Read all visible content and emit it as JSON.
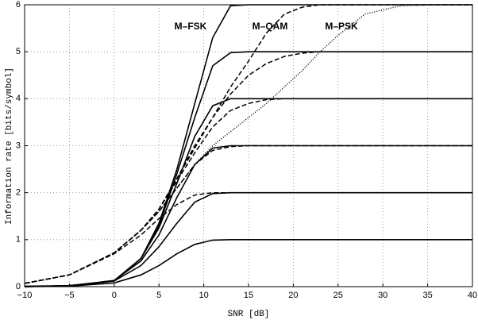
{
  "chart_data": {
    "type": "line",
    "xlabel": "SNR [dB]",
    "ylabel": "Information rate [bits/symbol]",
    "annotations": [
      "M–FSK",
      "M–QAM",
      "M–PSK"
    ],
    "x": [
      -10,
      -5,
      0,
      3,
      5,
      7,
      9,
      11,
      13,
      15,
      17,
      19,
      21,
      23,
      25,
      28,
      32,
      36,
      40
    ],
    "xlim": [
      -10,
      40
    ],
    "xticks": [
      {
        "value": -10,
        "label": "−10"
      },
      {
        "value": -5,
        "label": "−5"
      },
      0,
      5,
      10,
      15,
      20,
      25,
      30,
      35,
      40
    ],
    "ylim": [
      0,
      6
    ],
    "yticks": [
      0,
      1,
      2,
      3,
      4,
      5,
      6
    ],
    "grid": true,
    "series": [
      {
        "color": "#000000",
        "dash": "solid",
        "values": [
          0.0,
          0.01,
          0.08,
          0.25,
          0.45,
          0.7,
          0.9,
          0.99,
          1,
          1,
          1,
          1,
          1,
          1,
          1,
          1,
          1,
          1,
          1
        ]
      },
      {
        "color": "#000000",
        "dash": "solid",
        "values": [
          0.01,
          0.02,
          0.12,
          0.45,
          0.85,
          1.35,
          1.8,
          1.98,
          2,
          2,
          2,
          2,
          2,
          2,
          2,
          2,
          2,
          2,
          2
        ]
      },
      {
        "color": "#000000",
        "dash": "solid",
        "values": [
          0.0,
          0.02,
          0.13,
          0.55,
          1.1,
          1.9,
          2.6,
          2.95,
          3,
          3,
          3,
          3,
          3,
          3,
          3,
          3,
          3,
          3,
          3
        ]
      },
      {
        "color": "#000000",
        "dash": "solid",
        "values": [
          0.0,
          0.02,
          0.13,
          0.6,
          1.25,
          2.2,
          3.2,
          3.85,
          4,
          4,
          4,
          4,
          4,
          4,
          4,
          4,
          4,
          4,
          4
        ]
      },
      {
        "color": "#000000",
        "dash": "solid",
        "values": [
          0.0,
          0.02,
          0.12,
          0.6,
          1.3,
          2.4,
          3.6,
          4.7,
          4.98,
          5,
          5,
          5,
          5,
          5,
          5,
          5,
          5,
          5,
          5
        ]
      },
      {
        "color": "#000000",
        "dash": "solid",
        "values": [
          0.0,
          0.02,
          0.12,
          0.6,
          1.35,
          2.5,
          3.9,
          5.3,
          5.98,
          6,
          6,
          6,
          6,
          6,
          6,
          6,
          6,
          6,
          6
        ]
      },
      {
        "color": "#000000",
        "dash": "dashed",
        "values": [
          0.07,
          0.25,
          0.7,
          1.1,
          1.45,
          1.75,
          1.95,
          2,
          2,
          2,
          2,
          2,
          2,
          2,
          2,
          2,
          2,
          2,
          2
        ]
      },
      {
        "color": "#000000",
        "dash": "dashed",
        "values": [
          0.07,
          0.25,
          0.72,
          1.2,
          1.6,
          2.1,
          2.6,
          2.9,
          2.98,
          3,
          3,
          3,
          3,
          3,
          3,
          3,
          3,
          3,
          3
        ]
      },
      {
        "color": "#000000",
        "dash": "dashed",
        "values": [
          0.07,
          0.25,
          0.72,
          1.2,
          1.65,
          2.25,
          2.85,
          3.4,
          3.75,
          3.9,
          3.98,
          4,
          4,
          4,
          4,
          4,
          4,
          4,
          4
        ]
      },
      {
        "color": "#000000",
        "dash": "dashed",
        "values": [
          0.07,
          0.25,
          0.72,
          1.2,
          1.65,
          2.3,
          2.95,
          3.6,
          4.1,
          4.5,
          4.75,
          4.9,
          4.97,
          5,
          5,
          5,
          5,
          5,
          5
        ]
      },
      {
        "color": "#000000",
        "dash": "dashed",
        "values": [
          0.07,
          0.25,
          0.72,
          1.2,
          1.65,
          2.3,
          3.0,
          3.6,
          4.25,
          4.8,
          5.4,
          5.8,
          5.95,
          6,
          6,
          6,
          6,
          6,
          6
        ]
      },
      {
        "color": "#000000",
        "dash": "dotted",
        "values": [
          0.07,
          0.25,
          0.72,
          1.2,
          1.6,
          2.1,
          2.6,
          3.0,
          3.3,
          3.6,
          3.9,
          4.25,
          4.6,
          5.0,
          5.35,
          5.8,
          5.98,
          6,
          6
        ]
      }
    ]
  }
}
